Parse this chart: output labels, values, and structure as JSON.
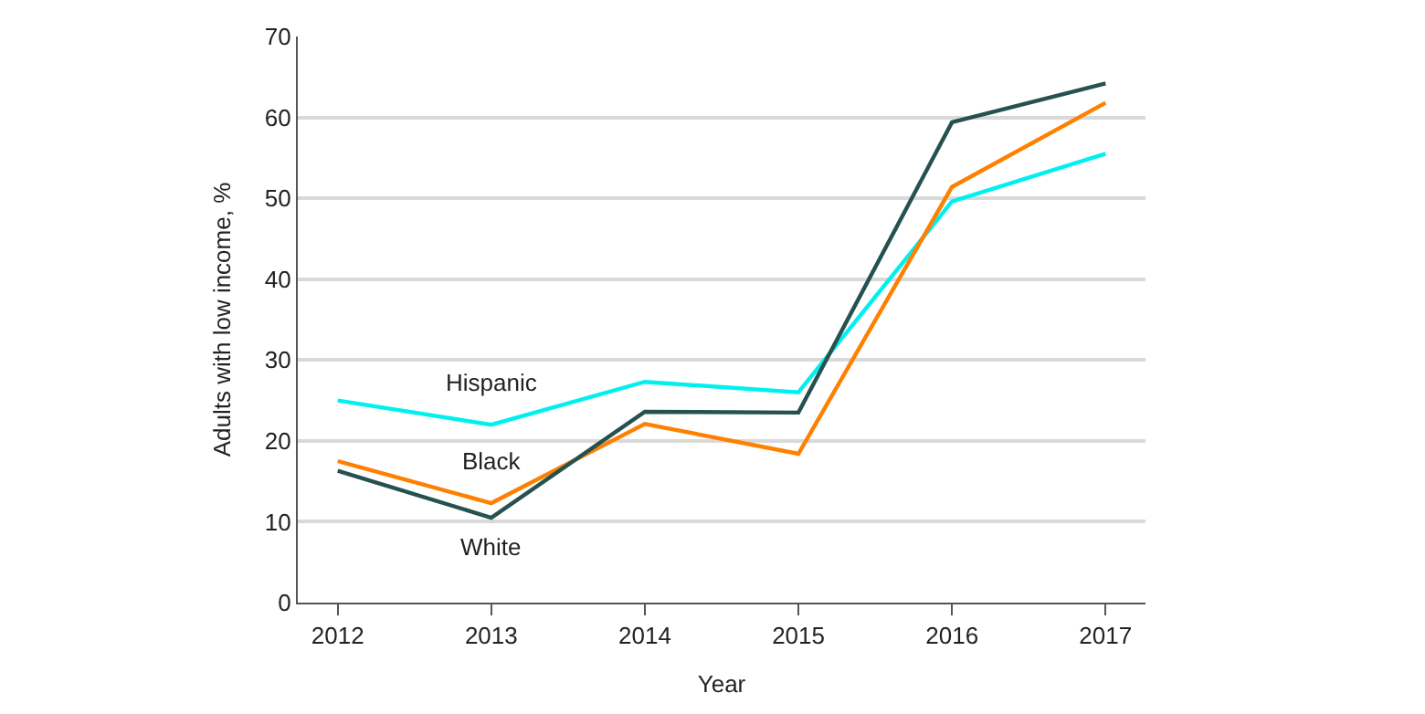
{
  "chart_data": {
    "type": "line",
    "xlabel": "Year",
    "ylabel": "Adults with low income, %",
    "x": [
      2012,
      2013,
      2014,
      2015,
      2016,
      2017
    ],
    "xlim": [
      2011.74,
      2017.26
    ],
    "xticks": [
      2012,
      2013,
      2014,
      2015,
      2016,
      2017
    ],
    "ylim": [
      0,
      70
    ],
    "yticks": [
      0,
      10,
      20,
      30,
      40,
      50,
      60,
      70
    ],
    "grid": "y",
    "legend": false,
    "marker": "none",
    "line_style": "solid",
    "series": [
      {
        "name": "Hispanic",
        "color": "#00f0f0",
        "values": [
          25.0,
          22.0,
          27.3,
          26.0,
          49.6,
          55.5
        ]
      },
      {
        "name": "Black",
        "color": "#ff8000",
        "values": [
          17.5,
          12.3,
          22.1,
          18.4,
          51.4,
          61.8
        ]
      },
      {
        "name": "White",
        "color": "#255150",
        "values": [
          16.3,
          10.5,
          23.6,
          23.5,
          59.4,
          64.2
        ]
      }
    ]
  }
}
